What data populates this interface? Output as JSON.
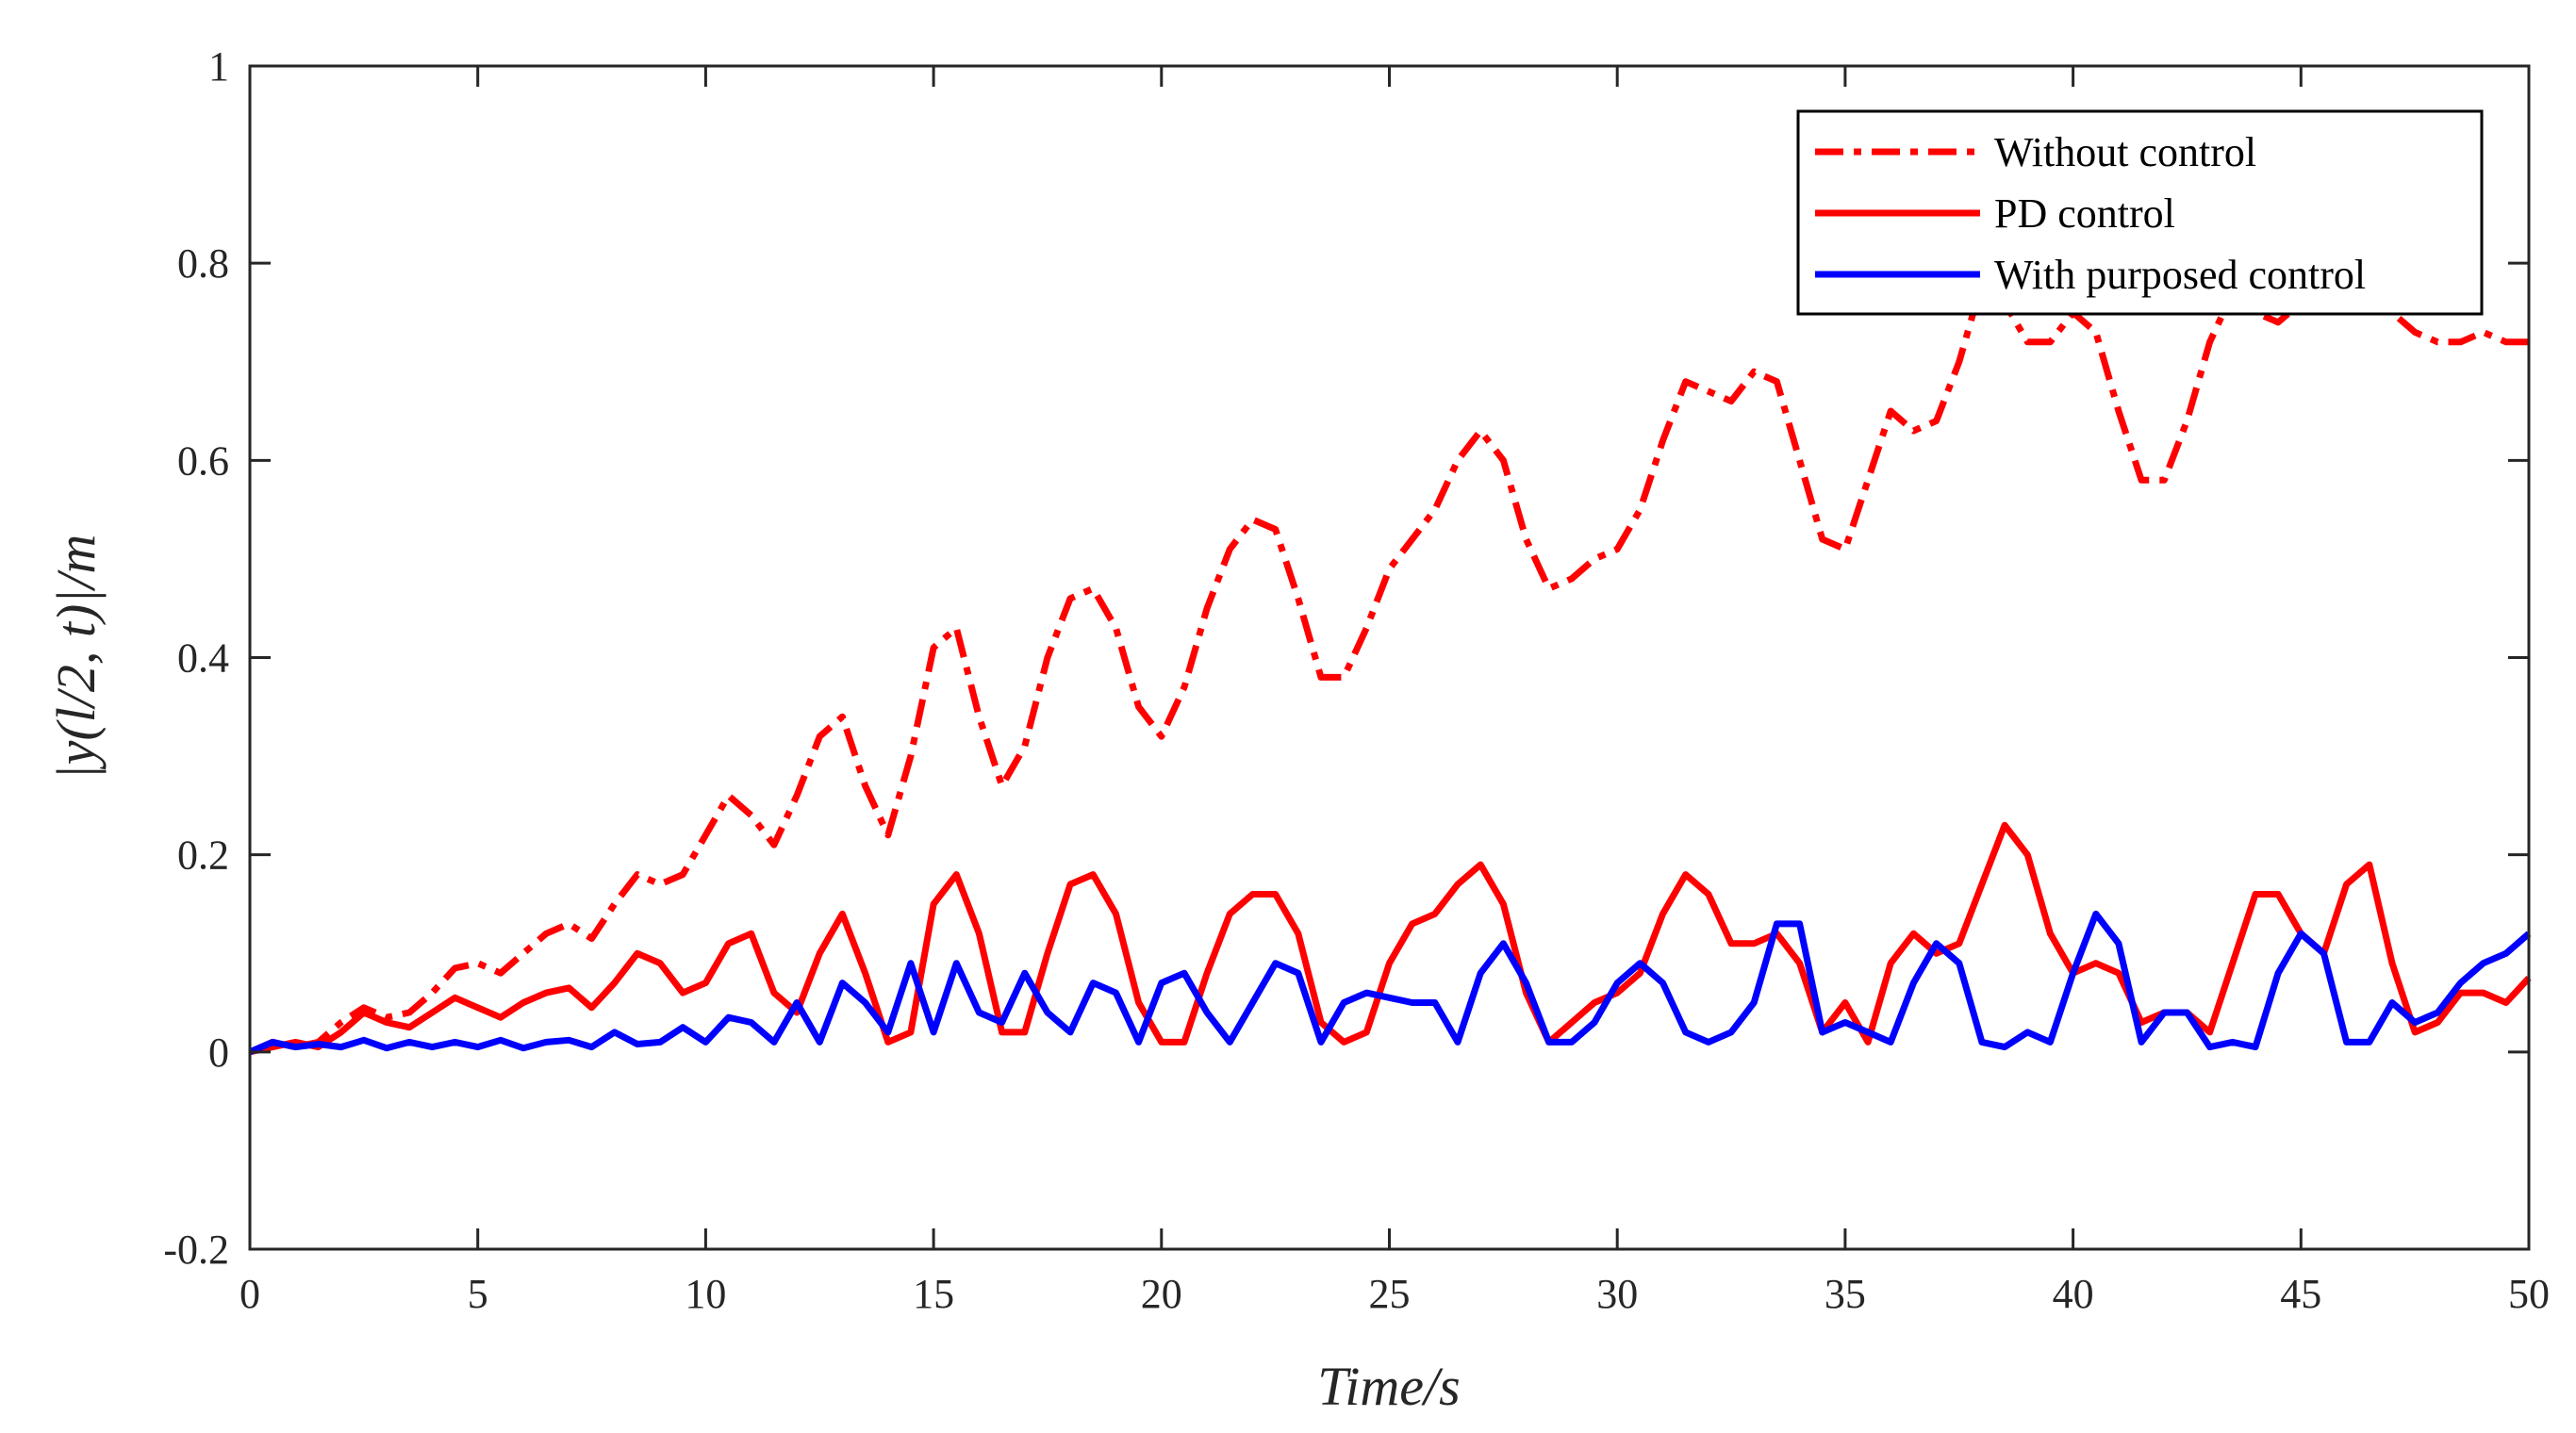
{
  "chart_data": {
    "type": "line",
    "title": "",
    "xlabel": "Time/s",
    "ylabel": "|y(l/2, t)|/m",
    "xlim": [
      0,
      50
    ],
    "ylim": [
      -0.2,
      1
    ],
    "xticks": [
      0,
      5,
      10,
      15,
      20,
      25,
      30,
      35,
      40,
      45,
      50
    ],
    "xtick_labels": [
      "0",
      "5",
      "10",
      "15",
      "20",
      "25",
      "30",
      "35",
      "40",
      "45",
      "50"
    ],
    "yticks": [
      -0.2,
      0,
      0.2,
      0.4,
      0.6,
      0.8,
      1
    ],
    "ytick_labels": [
      "-0.2",
      "0",
      "0.2",
      "0.4",
      "0.6",
      "0.8",
      "1"
    ],
    "grid": false,
    "legend_position": "top-right",
    "series": [
      {
        "name": "Without control",
        "color": "#ff0000",
        "dash": "dash-dot",
        "x": [
          0,
          0.5,
          1,
          1.5,
          2,
          2.5,
          3,
          3.5,
          4,
          4.5,
          5,
          5.5,
          6,
          6.5,
          7,
          7.5,
          8,
          8.5,
          9,
          9.5,
          10,
          10.5,
          11,
          11.5,
          12,
          12.5,
          13,
          13.5,
          14,
          14.5,
          15,
          15.5,
          16,
          16.5,
          17,
          17.5,
          18,
          18.5,
          19,
          19.5,
          20,
          20.5,
          21,
          21.5,
          22,
          22.5,
          23,
          23.5,
          24,
          24.5,
          25,
          25.5,
          26,
          26.5,
          27,
          27.5,
          28,
          28.5,
          29,
          29.5,
          30,
          30.5,
          31,
          31.5,
          32,
          32.5,
          33,
          33.5,
          34,
          34.5,
          35,
          35.5,
          36,
          36.5,
          37,
          37.5,
          38,
          38.5,
          39,
          39.5,
          40,
          40.5,
          41,
          41.5,
          42,
          42.5,
          43,
          43.5,
          44,
          44.5,
          45,
          45.5,
          46,
          46.5,
          47,
          47.5,
          48,
          48.5,
          49,
          49.5,
          50
        ],
        "values": [
          0.0,
          0.01,
          0.005,
          0.01,
          0.03,
          0.045,
          0.035,
          0.04,
          0.06,
          0.085,
          0.09,
          0.08,
          0.1,
          0.12,
          0.13,
          0.115,
          0.15,
          0.18,
          0.17,
          0.18,
          0.22,
          0.26,
          0.24,
          0.21,
          0.26,
          0.32,
          0.34,
          0.27,
          0.22,
          0.3,
          0.41,
          0.43,
          0.34,
          0.27,
          0.31,
          0.4,
          0.46,
          0.47,
          0.43,
          0.35,
          0.32,
          0.37,
          0.45,
          0.51,
          0.54,
          0.53,
          0.46,
          0.38,
          0.38,
          0.43,
          0.49,
          0.52,
          0.55,
          0.6,
          0.63,
          0.6,
          0.52,
          0.47,
          0.48,
          0.5,
          0.51,
          0.55,
          0.62,
          0.68,
          0.67,
          0.66,
          0.69,
          0.68,
          0.6,
          0.52,
          0.51,
          0.58,
          0.65,
          0.63,
          0.64,
          0.7,
          0.78,
          0.76,
          0.72,
          0.72,
          0.75,
          0.73,
          0.65,
          0.58,
          0.58,
          0.64,
          0.72,
          0.77,
          0.75,
          0.74,
          0.76,
          0.78,
          0.79,
          0.77,
          0.75,
          0.73,
          0.72,
          0.72,
          0.73,
          0.72,
          0.72
        ]
      },
      {
        "name": "PD control",
        "color": "#ff0000",
        "dash": "solid",
        "x": [
          0,
          0.5,
          1,
          1.5,
          2,
          2.5,
          3,
          3.5,
          4,
          4.5,
          5,
          5.5,
          6,
          6.5,
          7,
          7.5,
          8,
          8.5,
          9,
          9.5,
          10,
          10.5,
          11,
          11.5,
          12,
          12.5,
          13,
          13.5,
          14,
          14.5,
          15,
          15.5,
          16,
          16.5,
          17,
          17.5,
          18,
          18.5,
          19,
          19.5,
          20,
          20.5,
          21,
          21.5,
          22,
          22.5,
          23,
          23.5,
          24,
          24.5,
          25,
          25.5,
          26,
          26.5,
          27,
          27.5,
          28,
          28.5,
          29,
          29.5,
          30,
          30.5,
          31,
          31.5,
          32,
          32.5,
          33,
          33.5,
          34,
          34.5,
          35,
          35.5,
          36,
          36.5,
          37,
          37.5,
          38,
          38.5,
          39,
          39.5,
          40,
          40.5,
          41,
          41.5,
          42,
          42.5,
          43,
          43.5,
          44,
          44.5,
          45,
          45.5,
          46,
          46.5,
          47,
          47.5,
          48,
          48.5,
          49,
          49.5,
          50
        ],
        "values": [
          0.0,
          0.005,
          0.01,
          0.005,
          0.02,
          0.04,
          0.03,
          0.025,
          0.04,
          0.055,
          0.045,
          0.035,
          0.05,
          0.06,
          0.065,
          0.045,
          0.07,
          0.1,
          0.09,
          0.06,
          0.07,
          0.11,
          0.12,
          0.06,
          0.04,
          0.1,
          0.14,
          0.08,
          0.01,
          0.02,
          0.15,
          0.18,
          0.12,
          0.02,
          0.02,
          0.1,
          0.17,
          0.18,
          0.14,
          0.05,
          0.01,
          0.01,
          0.08,
          0.14,
          0.16,
          0.16,
          0.12,
          0.03,
          0.01,
          0.02,
          0.09,
          0.13,
          0.14,
          0.17,
          0.19,
          0.15,
          0.06,
          0.01,
          0.03,
          0.05,
          0.06,
          0.08,
          0.14,
          0.18,
          0.16,
          0.11,
          0.11,
          0.12,
          0.09,
          0.02,
          0.05,
          0.01,
          0.09,
          0.12,
          0.1,
          0.11,
          0.17,
          0.23,
          0.2,
          0.12,
          0.08,
          0.09,
          0.08,
          0.03,
          0.04,
          0.04,
          0.02,
          0.09,
          0.16,
          0.16,
          0.12,
          0.1,
          0.17,
          0.19,
          0.09,
          0.02,
          0.03,
          0.06,
          0.06,
          0.05,
          0.075
        ]
      },
      {
        "name": "With purposed control",
        "color": "#0000ff",
        "dash": "solid",
        "x": [
          0,
          0.5,
          1,
          1.5,
          2,
          2.5,
          3,
          3.5,
          4,
          4.5,
          5,
          5.5,
          6,
          6.5,
          7,
          7.5,
          8,
          8.5,
          9,
          9.5,
          10,
          10.5,
          11,
          11.5,
          12,
          12.5,
          13,
          13.5,
          14,
          14.5,
          15,
          15.5,
          16,
          16.5,
          17,
          17.5,
          18,
          18.5,
          19,
          19.5,
          20,
          20.5,
          21,
          21.5,
          22,
          22.5,
          23,
          23.5,
          24,
          24.5,
          25,
          25.5,
          26,
          26.5,
          27,
          27.5,
          28,
          28.5,
          29,
          29.5,
          30,
          30.5,
          31,
          31.5,
          32,
          32.5,
          33,
          33.5,
          34,
          34.5,
          35,
          35.5,
          36,
          36.5,
          37,
          37.5,
          38,
          38.5,
          39,
          39.5,
          40,
          40.5,
          41,
          41.5,
          42,
          42.5,
          43,
          43.5,
          44,
          44.5,
          45,
          45.5,
          46,
          46.5,
          47,
          47.5,
          48,
          48.5,
          49,
          49.5,
          50
        ],
        "values": [
          0.0,
          0.01,
          0.005,
          0.008,
          0.005,
          0.012,
          0.004,
          0.01,
          0.005,
          0.01,
          0.005,
          0.012,
          0.004,
          0.01,
          0.012,
          0.005,
          0.02,
          0.008,
          0.01,
          0.025,
          0.01,
          0.035,
          0.03,
          0.01,
          0.05,
          0.01,
          0.07,
          0.05,
          0.02,
          0.09,
          0.02,
          0.09,
          0.04,
          0.03,
          0.08,
          0.04,
          0.02,
          0.07,
          0.06,
          0.01,
          0.07,
          0.08,
          0.04,
          0.01,
          0.05,
          0.09,
          0.08,
          0.01,
          0.05,
          0.06,
          0.055,
          0.05,
          0.05,
          0.01,
          0.08,
          0.11,
          0.07,
          0.01,
          0.01,
          0.03,
          0.07,
          0.09,
          0.07,
          0.02,
          0.01,
          0.02,
          0.05,
          0.13,
          0.13,
          0.02,
          0.03,
          0.02,
          0.01,
          0.07,
          0.11,
          0.09,
          0.01,
          0.005,
          0.02,
          0.01,
          0.08,
          0.14,
          0.11,
          0.01,
          0.04,
          0.04,
          0.005,
          0.01,
          0.005,
          0.08,
          0.12,
          0.1,
          0.01,
          0.01,
          0.05,
          0.03,
          0.04,
          0.07,
          0.09,
          0.1,
          0.12
        ]
      }
    ]
  }
}
